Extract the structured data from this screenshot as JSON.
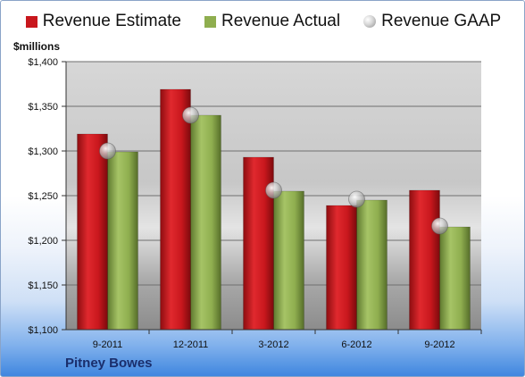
{
  "legend": [
    {
      "label": "Revenue Estimate",
      "color": "#c8171d",
      "marker": "box"
    },
    {
      "label": "Revenue Actual",
      "color": "#8fae4f",
      "marker": "box"
    },
    {
      "label": "Revenue GAAP",
      "color": "#c4c4c4",
      "marker": "circle"
    }
  ],
  "units_label": "$millions",
  "company_label": "Pitney Bowes",
  "chart_data": {
    "type": "bar",
    "categories": [
      "9-2011",
      "12-2011",
      "3-2012",
      "6-2012",
      "9-2012"
    ],
    "series": [
      {
        "name": "Revenue Estimate",
        "values": [
          1319,
          1369,
          1293,
          1239,
          1256
        ],
        "color": "#c8171d",
        "mark": "bar"
      },
      {
        "name": "Revenue Actual",
        "values": [
          1299,
          1340,
          1255,
          1245,
          1215
        ],
        "color": "#8fae4f",
        "mark": "bar"
      },
      {
        "name": "Revenue GAAP",
        "values": [
          1300,
          1340,
          1256,
          1246,
          1216
        ],
        "color": "#c4c4c4",
        "mark": "point"
      }
    ],
    "ylim": [
      1100,
      1400
    ],
    "yticks": [
      1100,
      1150,
      1200,
      1250,
      1300,
      1350,
      1400
    ],
    "ytick_labels": [
      "$1,100",
      "$1,150",
      "$1,200",
      "$1,250",
      "$1,300",
      "$1,350",
      "$1,400"
    ],
    "grid": true,
    "legend_position": "top"
  }
}
